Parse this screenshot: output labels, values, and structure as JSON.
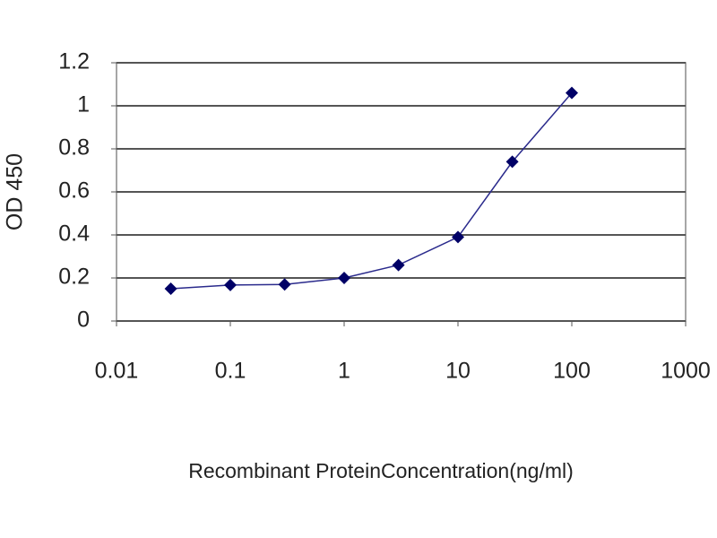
{
  "chart_data": {
    "type": "line",
    "x_label": "Recombinant ProteinConcentration(ng/ml)",
    "y_label": "OD 450",
    "x": [
      0.03,
      0.1,
      0.3,
      1,
      3,
      10,
      30,
      100
    ],
    "values": [
      0.15,
      0.167,
      0.17,
      0.2,
      0.26,
      0.39,
      0.74,
      1.06
    ],
    "color": "#2a2a8c",
    "marker_color": "#000066",
    "xscale": "log",
    "xlim": [
      0.01,
      1000
    ],
    "xticks": [
      0.01,
      0.1,
      1,
      10,
      100,
      1000
    ],
    "ylim": [
      0,
      1.2
    ],
    "yticks": [
      0,
      0.2,
      0.4,
      0.6,
      0.8,
      1,
      1.2
    ],
    "grid": true
  }
}
